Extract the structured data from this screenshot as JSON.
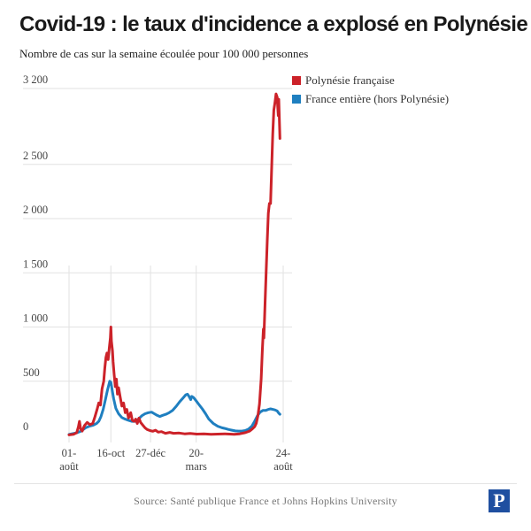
{
  "header": {
    "title": "Covid-19 : le taux d'incidence a explosé en Polynésie",
    "subtitle": "Nombre de cas sur la semaine écoulée pour 100 000 personnes"
  },
  "footer": {
    "source": "Source: Santé publique France et Johns Hopkins University",
    "logo_letter": "P"
  },
  "colors": {
    "polynesie": "#cc2229",
    "france": "#1f7fc0",
    "grid": "#e2e2e2",
    "logo": "#1f4fa0"
  },
  "chart_data": {
    "type": "line",
    "title": "Covid-19 : le taux d'incidence a explosé en Polynésie",
    "subtitle": "Nombre de cas sur la semaine écoulée pour 100 000 personnes",
    "xlabel": "",
    "ylabel": "",
    "x_unit": "days since 1 August 2020",
    "xlim": [
      0,
      389
    ],
    "ylim": [
      0,
      3200
    ],
    "grid": true,
    "legend_position": "top-right",
    "y_ticks": [
      {
        "value": 0,
        "label": "0"
      },
      {
        "value": 500,
        "label": "500"
      },
      {
        "value": 1000,
        "label": "1 000"
      },
      {
        "value": 1500,
        "label": "1 500"
      },
      {
        "value": 2000,
        "label": "2 000"
      },
      {
        "value": 2500,
        "label": "2 500"
      },
      {
        "value": 3200,
        "label": "3 200"
      }
    ],
    "x_ticks": [
      {
        "day": 0,
        "label": [
          "01-",
          "août"
        ]
      },
      {
        "day": 76,
        "label": [
          "16-oct"
        ]
      },
      {
        "day": 148,
        "label": [
          "27-déc"
        ]
      },
      {
        "day": 231,
        "label": [
          "20-",
          "mars"
        ]
      },
      {
        "day": 389,
        "label": [
          "24-",
          "août"
        ]
      }
    ],
    "series": [
      {
        "name": "Polynésie française",
        "color": "#cc2229",
        "points": [
          [
            0,
            5
          ],
          [
            8,
            10
          ],
          [
            14,
            25
          ],
          [
            17,
            80
          ],
          [
            19,
            130
          ],
          [
            21,
            60
          ],
          [
            24,
            40
          ],
          [
            28,
            90
          ],
          [
            33,
            120
          ],
          [
            38,
            100
          ],
          [
            43,
            110
          ],
          [
            47,
            170
          ],
          [
            51,
            240
          ],
          [
            54,
            300
          ],
          [
            57,
            280
          ],
          [
            60,
            430
          ],
          [
            63,
            500
          ],
          [
            65,
            620
          ],
          [
            67,
            720
          ],
          [
            69,
            760
          ],
          [
            71,
            700
          ],
          [
            73,
            800
          ],
          [
            75,
            900
          ],
          [
            76,
            1000
          ],
          [
            77,
            870
          ],
          [
            79,
            780
          ],
          [
            80,
            680
          ],
          [
            82,
            560
          ],
          [
            84,
            450
          ],
          [
            86,
            520
          ],
          [
            88,
            380
          ],
          [
            90,
            440
          ],
          [
            93,
            350
          ],
          [
            96,
            270
          ],
          [
            99,
            300
          ],
          [
            102,
            210
          ],
          [
            105,
            240
          ],
          [
            108,
            160
          ],
          [
            112,
            210
          ],
          [
            115,
            140
          ],
          [
            118,
            130
          ],
          [
            121,
            150
          ],
          [
            124,
            110
          ],
          [
            127,
            160
          ],
          [
            130,
            120
          ],
          [
            134,
            95
          ],
          [
            138,
            70
          ],
          [
            142,
            55
          ],
          [
            147,
            45
          ],
          [
            152,
            38
          ],
          [
            157,
            48
          ],
          [
            162,
            30
          ],
          [
            168,
            35
          ],
          [
            175,
            20
          ],
          [
            183,
            28
          ],
          [
            190,
            20
          ],
          [
            200,
            22
          ],
          [
            210,
            15
          ],
          [
            220,
            18
          ],
          [
            232,
            12
          ],
          [
            245,
            14
          ],
          [
            258,
            10
          ],
          [
            270,
            12
          ],
          [
            283,
            15
          ],
          [
            292,
            12
          ],
          [
            300,
            10
          ],
          [
            310,
            15
          ],
          [
            320,
            25
          ],
          [
            328,
            40
          ],
          [
            333,
            60
          ],
          [
            337,
            80
          ],
          [
            340,
            110
          ],
          [
            343,
            180
          ],
          [
            346,
            290
          ],
          [
            349,
            520
          ],
          [
            351,
            780
          ],
          [
            353,
            980
          ],
          [
            354,
            900
          ],
          [
            356,
            1220
          ],
          [
            358,
            1500
          ],
          [
            360,
            1800
          ],
          [
            362,
            2050
          ],
          [
            364,
            2140
          ],
          [
            366,
            2140
          ],
          [
            368,
            2450
          ],
          [
            370,
            2780
          ],
          [
            372,
            3000
          ],
          [
            374,
            3070
          ],
          [
            376,
            3150
          ],
          [
            378,
            3120
          ],
          [
            380,
            2950
          ],
          [
            381,
            3100
          ],
          [
            383,
            2740
          ]
        ]
      },
      {
        "name": "France entière (hors Polynésie)",
        "color": "#1f7fc0",
        "points": [
          [
            0,
            10
          ],
          [
            8,
            18
          ],
          [
            15,
            25
          ],
          [
            22,
            40
          ],
          [
            30,
            70
          ],
          [
            37,
            85
          ],
          [
            44,
            95
          ],
          [
            50,
            110
          ],
          [
            54,
            130
          ],
          [
            58,
            175
          ],
          [
            62,
            240
          ],
          [
            66,
            330
          ],
          [
            70,
            420
          ],
          [
            74,
            500
          ],
          [
            76,
            490
          ],
          [
            78,
            430
          ],
          [
            81,
            340
          ],
          [
            85,
            250
          ],
          [
            90,
            200
          ],
          [
            96,
            165
          ],
          [
            102,
            150
          ],
          [
            108,
            140
          ],
          [
            114,
            130
          ],
          [
            120,
            130
          ],
          [
            126,
            150
          ],
          [
            132,
            180
          ],
          [
            138,
            200
          ],
          [
            144,
            210
          ],
          [
            150,
            215
          ],
          [
            155,
            200
          ],
          [
            160,
            185
          ],
          [
            165,
            175
          ],
          [
            170,
            185
          ],
          [
            176,
            195
          ],
          [
            182,
            210
          ],
          [
            188,
            230
          ],
          [
            195,
            270
          ],
          [
            201,
            310
          ],
          [
            207,
            345
          ],
          [
            212,
            375
          ],
          [
            215,
            380
          ],
          [
            218,
            360
          ],
          [
            221,
            330
          ],
          [
            223,
            360
          ],
          [
            226,
            350
          ],
          [
            230,
            325
          ],
          [
            236,
            285
          ],
          [
            242,
            245
          ],
          [
            248,
            200
          ],
          [
            254,
            150
          ],
          [
            262,
            110
          ],
          [
            270,
            85
          ],
          [
            278,
            70
          ],
          [
            285,
            62
          ],
          [
            290,
            55
          ],
          [
            296,
            48
          ],
          [
            302,
            42
          ],
          [
            308,
            40
          ],
          [
            314,
            40
          ],
          [
            320,
            45
          ],
          [
            326,
            58
          ],
          [
            332,
            85
          ],
          [
            337,
            130
          ],
          [
            342,
            180
          ],
          [
            347,
            215
          ],
          [
            352,
            230
          ],
          [
            357,
            230
          ],
          [
            362,
            240
          ],
          [
            366,
            245
          ],
          [
            370,
            240
          ],
          [
            374,
            235
          ],
          [
            378,
            225
          ],
          [
            381,
            205
          ],
          [
            383,
            195
          ]
        ]
      }
    ]
  }
}
